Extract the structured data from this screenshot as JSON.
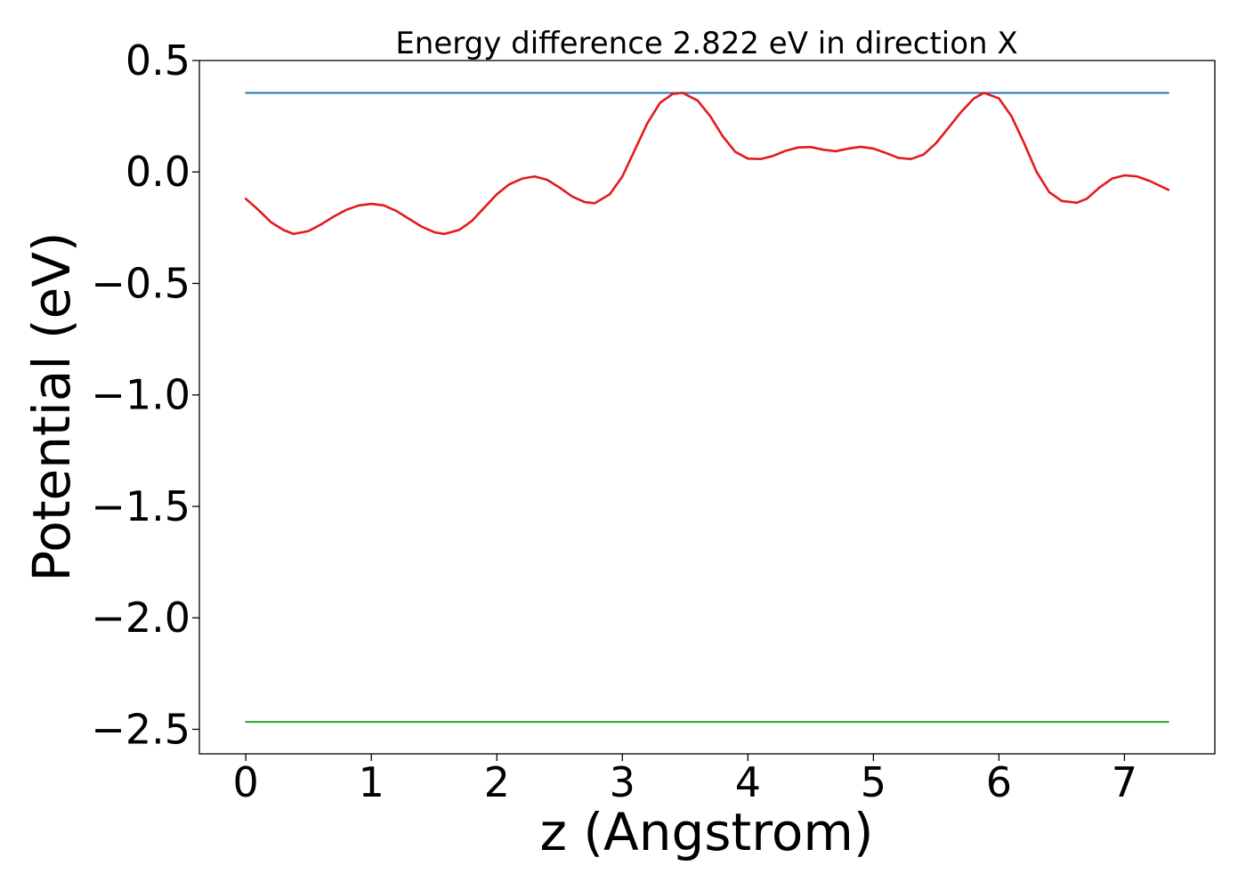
{
  "chart_data": {
    "type": "line",
    "title": "Energy difference 2.822 eV in direction X",
    "xlabel": "z (Angstrom)",
    "ylabel": "Potential (eV)",
    "xlim": [
      -0.37,
      7.72
    ],
    "ylim": [
      -2.61,
      0.5
    ],
    "xticks": [
      0,
      1,
      2,
      3,
      4,
      5,
      6,
      7
    ],
    "xtick_labels": [
      "0",
      "1",
      "2",
      "3",
      "4",
      "5",
      "6",
      "7"
    ],
    "yticks": [
      0.5,
      0.0,
      -0.5,
      -1.0,
      -1.5,
      -2.0,
      -2.5
    ],
    "ytick_labels": [
      "0.5",
      "0.0",
      "−0.5",
      "−1.0",
      "−1.5",
      "−2.0",
      "−2.5"
    ],
    "grid": false,
    "series": [
      {
        "color": "#1f77b4",
        "x": [
          0,
          7.35
        ],
        "y": [
          0.355,
          0.355
        ]
      },
      {
        "color": "#2ca02c",
        "x": [
          0,
          7.35
        ],
        "y": [
          -2.467,
          -2.467
        ]
      },
      {
        "color": "#e31a1c",
        "x": [
          0,
          0.1,
          0.2,
          0.3,
          0.38,
          0.5,
          0.6,
          0.7,
          0.8,
          0.9,
          1.0,
          1.1,
          1.2,
          1.3,
          1.4,
          1.5,
          1.58,
          1.7,
          1.8,
          1.9,
          2.0,
          2.1,
          2.2,
          2.3,
          2.4,
          2.5,
          2.6,
          2.7,
          2.78,
          2.9,
          3.0,
          3.1,
          3.2,
          3.3,
          3.4,
          3.48,
          3.6,
          3.7,
          3.8,
          3.9,
          4.0,
          4.1,
          4.2,
          4.3,
          4.4,
          4.5,
          4.6,
          4.7,
          4.8,
          4.9,
          5.0,
          5.1,
          5.2,
          5.3,
          5.4,
          5.5,
          5.6,
          5.7,
          5.8,
          5.88,
          6.0,
          6.1,
          6.2,
          6.3,
          6.4,
          6.5,
          6.62,
          6.7,
          6.8,
          6.9,
          7.0,
          7.1,
          7.2,
          7.35
        ],
        "y": [
          -0.12,
          -0.17,
          -0.225,
          -0.26,
          -0.278,
          -0.265,
          -0.235,
          -0.2,
          -0.17,
          -0.15,
          -0.143,
          -0.15,
          -0.175,
          -0.21,
          -0.245,
          -0.27,
          -0.278,
          -0.26,
          -0.22,
          -0.16,
          -0.1,
          -0.055,
          -0.03,
          -0.02,
          -0.035,
          -0.07,
          -0.11,
          -0.135,
          -0.14,
          -0.1,
          -0.02,
          0.1,
          0.22,
          0.31,
          0.35,
          0.355,
          0.32,
          0.25,
          0.16,
          0.09,
          0.06,
          0.058,
          0.072,
          0.095,
          0.11,
          0.112,
          0.1,
          0.093,
          0.105,
          0.113,
          0.105,
          0.085,
          0.063,
          0.058,
          0.078,
          0.13,
          0.2,
          0.27,
          0.33,
          0.355,
          0.33,
          0.25,
          0.13,
          0.0,
          -0.09,
          -0.13,
          -0.138,
          -0.12,
          -0.07,
          -0.03,
          -0.015,
          -0.02,
          -0.04,
          -0.08
        ]
      }
    ]
  }
}
